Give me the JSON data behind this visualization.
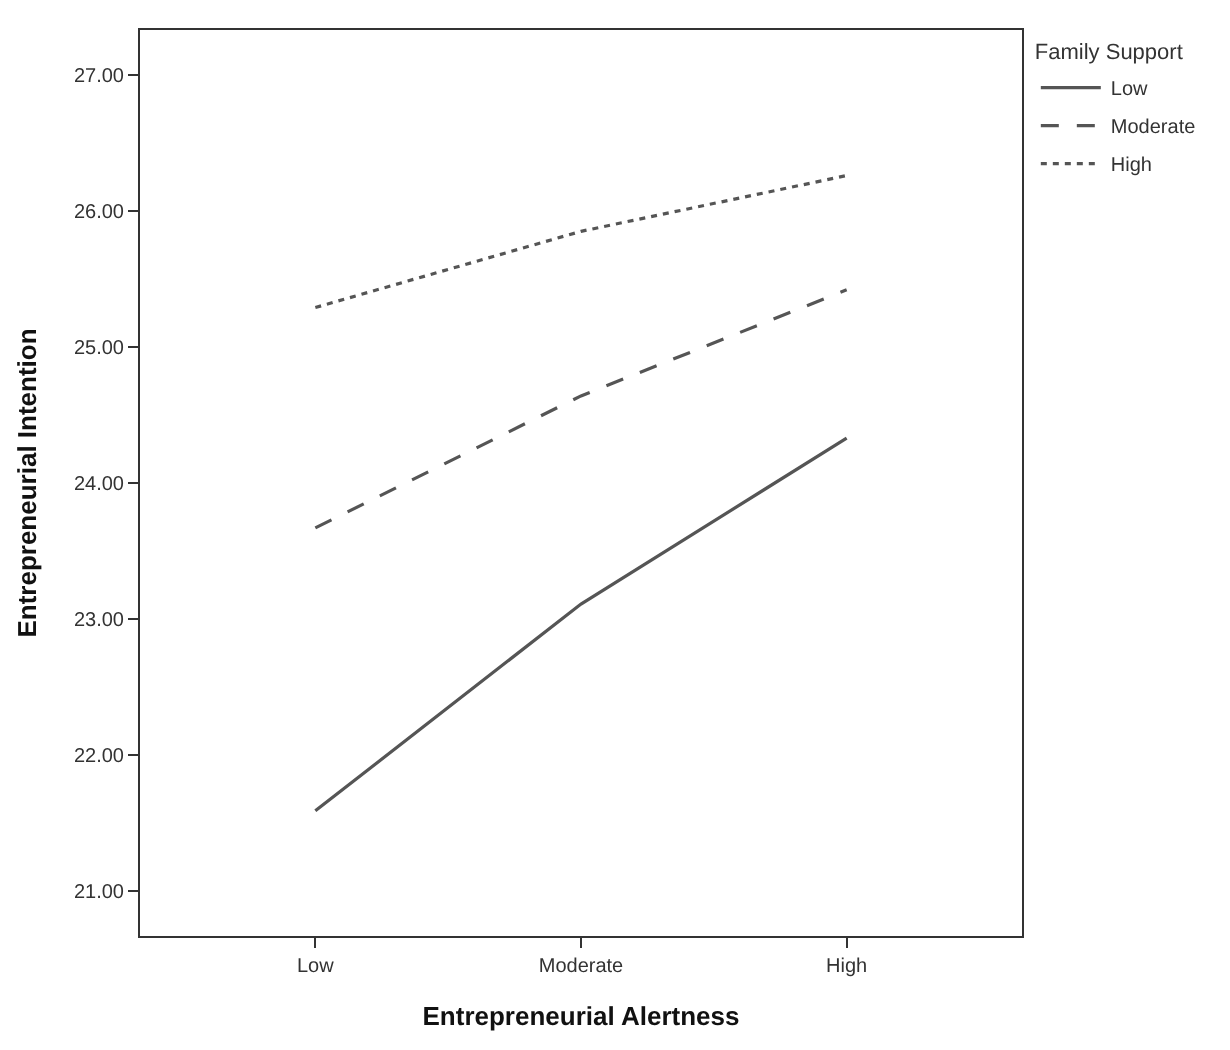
{
  "chart_data": {
    "type": "line",
    "xlabel": "Entrepreneurial Alertness",
    "ylabel": "Entrepreneurial Intention",
    "legend_title": "Family Support",
    "categories": [
      "Low",
      "Moderate",
      "High"
    ],
    "series": [
      {
        "name": "Low",
        "color": "#555555",
        "line_style": "solid",
        "values": [
          21.59,
          23.11,
          24.33
        ]
      },
      {
        "name": "Moderate",
        "color": "#555555",
        "line_style": "dashed",
        "values": [
          23.67,
          24.64,
          25.42
        ]
      },
      {
        "name": "High",
        "color": "#555555",
        "line_style": "dotted",
        "values": [
          25.29,
          25.85,
          26.26
        ]
      }
    ],
    "ylim": [
      20.67,
      27.33
    ],
    "yticks": [
      {
        "value": 21,
        "label": "21.00"
      },
      {
        "value": 22,
        "label": "22.00"
      },
      {
        "value": 23,
        "label": "23.00"
      },
      {
        "value": 24,
        "label": "24.00"
      },
      {
        "value": 25,
        "label": "25.00"
      },
      {
        "value": 26,
        "label": "26.00"
      },
      {
        "value": 27,
        "label": "27.00"
      }
    ],
    "legend": "top right",
    "marker": "none"
  }
}
